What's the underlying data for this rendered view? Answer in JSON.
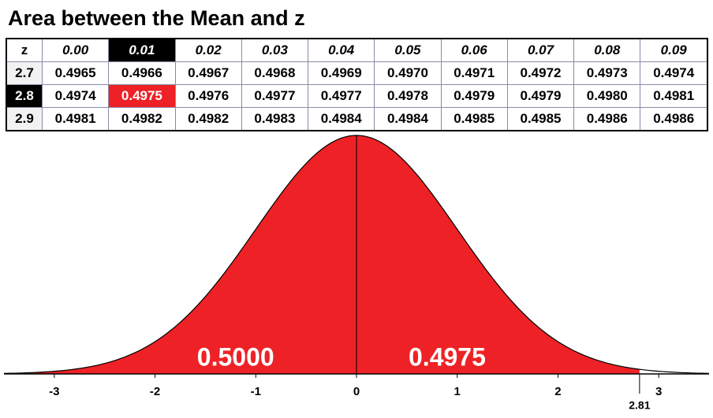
{
  "title": "Area between the Mean and z",
  "table": {
    "columns": [
      "z",
      "0.00",
      "0.01",
      "0.02",
      "0.03",
      "0.04",
      "0.05",
      "0.06",
      "0.07",
      "0.08",
      "0.09"
    ],
    "rows": [
      [
        "2.7",
        "0.4965",
        "0.4966",
        "0.4967",
        "0.4968",
        "0.4969",
        "0.4970",
        "0.4971",
        "0.4972",
        "0.4973",
        "0.4974"
      ],
      [
        "2.8",
        "0.4974",
        "0.4975",
        "0.4976",
        "0.4977",
        "0.4977",
        "0.4978",
        "0.4979",
        "0.4979",
        "0.4980",
        "0.4981"
      ],
      [
        "2.9",
        "0.4981",
        "0.4982",
        "0.4982",
        "0.4983",
        "0.4984",
        "0.4984",
        "0.4985",
        "0.4985",
        "0.4986",
        "0.4986"
      ]
    ],
    "highlight_row": 1,
    "highlight_col": 2
  },
  "chart_data": {
    "type": "normal-area",
    "xlim": [
      -3.5,
      3.5
    ],
    "xticks": [
      -3,
      -2,
      -1,
      0,
      1,
      2,
      3
    ],
    "z": 2.81,
    "values": [
      0.5,
      0.4975
    ],
    "value_labels": [
      "0.5000",
      "0.4975"
    ],
    "color": "#ee2226"
  }
}
